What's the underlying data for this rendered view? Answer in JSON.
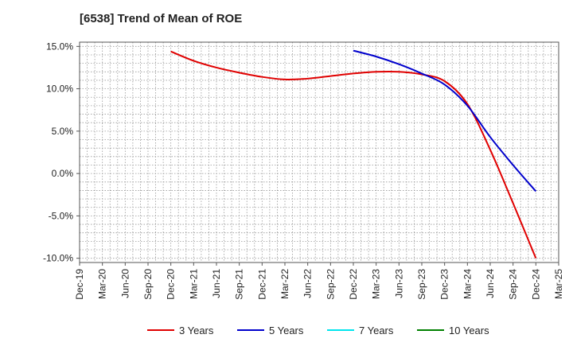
{
  "chart_data": {
    "type": "line",
    "title": "[6538]  Trend of Mean of ROE",
    "xlabel": "",
    "ylabel": "",
    "x_ticks": [
      "Dec-19",
      "Mar-20",
      "Jun-20",
      "Sep-20",
      "Dec-20",
      "Mar-21",
      "Jun-21",
      "Sep-21",
      "Dec-21",
      "Mar-22",
      "Jun-22",
      "Sep-22",
      "Dec-22",
      "Mar-23",
      "Jun-23",
      "Sep-23",
      "Dec-23",
      "Mar-24",
      "Jun-24",
      "Sep-24",
      "Dec-24",
      "Mar-25"
    ],
    "y_ticks": [
      15.0,
      10.0,
      5.0,
      0.0,
      -5.0,
      -10.0
    ],
    "y_tick_labels": [
      "15.0%",
      "10.0%",
      "5.0%",
      "0.0%",
      "-5.0%",
      "-10.0%"
    ],
    "ylim": [
      -10.5,
      15.5
    ],
    "grid": true,
    "legend_position": "bottom",
    "series": [
      {
        "name": "3 Years",
        "color": "#e00000",
        "x": [
          "Dec-20",
          "Mar-21",
          "Jun-21",
          "Sep-21",
          "Dec-21",
          "Mar-22",
          "Jun-22",
          "Sep-22",
          "Dec-22",
          "Mar-23",
          "Jun-23",
          "Sep-23",
          "Dec-23",
          "Mar-24",
          "Jun-24",
          "Sep-24",
          "Dec-24"
        ],
        "values": [
          14.4,
          13.3,
          12.5,
          11.9,
          11.4,
          11.1,
          11.2,
          11.5,
          11.8,
          12.0,
          12.0,
          11.7,
          10.9,
          8.2,
          2.8,
          -3.5,
          -10.0
        ]
      },
      {
        "name": "5 Years",
        "color": "#0000cc",
        "x": [
          "Dec-22",
          "Mar-23",
          "Jun-23",
          "Sep-23",
          "Dec-23",
          "Mar-24",
          "Jun-24",
          "Sep-24",
          "Dec-24"
        ],
        "values": [
          14.5,
          13.8,
          12.9,
          11.8,
          10.5,
          8.0,
          4.3,
          1.0,
          -2.1
        ]
      },
      {
        "name": "7 Years",
        "color": "#00e5ee",
        "x": [],
        "values": []
      },
      {
        "name": "10 Years",
        "color": "#008000",
        "x": [],
        "values": []
      }
    ]
  }
}
